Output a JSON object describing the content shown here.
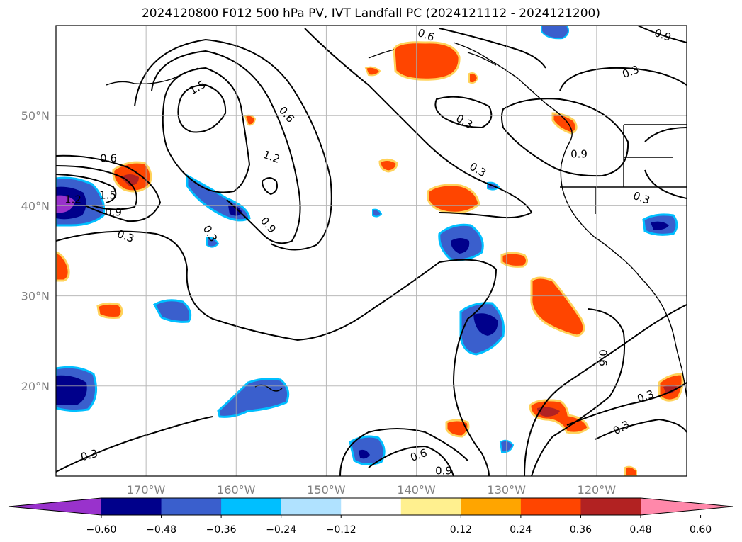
{
  "title": "2024120800 F012 500 hPa PV, IVT Landfall PC (2024121112 - 2024121200)",
  "map": {
    "lon_range": [
      -180,
      -110
    ],
    "lat_range": [
      10,
      60
    ],
    "grid": true,
    "lon_ticks": [
      {
        "lon": -170,
        "label": "170°W"
      },
      {
        "lon": -160,
        "label": "160°W"
      },
      {
        "lon": -150,
        "label": "150°W"
      },
      {
        "lon": -140,
        "label": "140°W"
      },
      {
        "lon": -130,
        "label": "130°W"
      },
      {
        "lon": -120,
        "label": "120°W"
      }
    ],
    "lat_ticks": [
      {
        "lat": 20,
        "label": "20°N"
      },
      {
        "lat": 30,
        "label": "30°N"
      },
      {
        "lat": 40,
        "label": "40°N"
      },
      {
        "lat": 50,
        "label": "50°N"
      }
    ],
    "contour_labels": [
      "1.5",
      "0.6",
      "1.2",
      "0.9",
      "0.3",
      "0.6",
      "0.3",
      "0.3",
      "0.6",
      "0.3",
      "0.9",
      "0.3",
      "0.9",
      "0.6",
      "0.3",
      "0.3",
      "0.3",
      "0.6",
      "0.9",
      "1.2",
      "1.5",
      "0.9",
      "0.3"
    ]
  },
  "colorbar": {
    "colors": [
      "#9932cc",
      "#00008b",
      "#3a5fcd",
      "#00bfff",
      "#b0e2ff",
      "#ffffff",
      "#fff08f",
      "#ffa500",
      "#ff4500",
      "#b22222",
      "#ff88aa"
    ],
    "tick_labels": [
      "−0.60",
      "−0.48",
      "−0.36",
      "−0.24",
      "−0.12",
      "0.12",
      "0.24",
      "0.36",
      "0.48",
      "0.60"
    ]
  }
}
